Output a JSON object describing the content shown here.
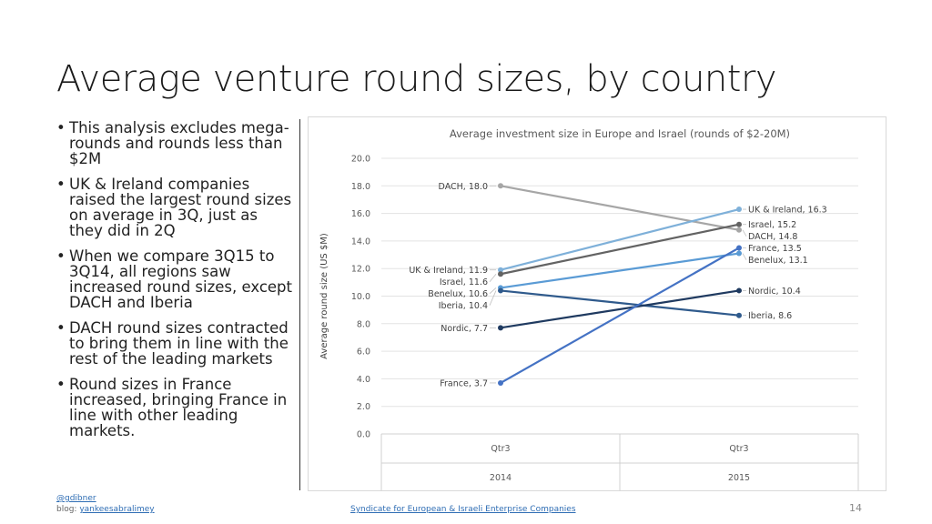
{
  "slide": {
    "title": "Average venture round sizes, by country",
    "bullets": [
      "This analysis excludes mega-rounds and rounds less than $2M",
      "UK & Ireland companies raised the largest round sizes on average in 3Q, just as they did in 2Q",
      "When we compare 3Q15 to 3Q14, all regions saw increased round sizes, except DACH and Iberia",
      "DACH round sizes contracted to bring them in line with the rest of the leading markets",
      "Round sizes in France increased, bringing France in line with other leading markets."
    ],
    "footer": {
      "handle": "@gdibner",
      "blog_prefix": "blog: ",
      "blog_link": "yankeesabralimey",
      "center_link": "Syndicate for European & Israeli Enterprise Companies",
      "page_number": "14"
    }
  },
  "chart_data": {
    "type": "line",
    "title": "Average investment size in Europe and Israel (rounds of $2-20M)",
    "ylabel": "Average round size (US $M)",
    "xlabel": "",
    "ylim": [
      0,
      20
    ],
    "yticks": [
      "0.0",
      "2.0",
      "4.0",
      "6.0",
      "8.0",
      "10.0",
      "12.0",
      "14.0",
      "16.0",
      "18.0",
      "20.0"
    ],
    "categories": [
      {
        "quarter": "Qtr3",
        "year": "2014"
      },
      {
        "quarter": "Qtr3",
        "year": "2015"
      }
    ],
    "series": [
      {
        "name": "DACH",
        "values": [
          18.0,
          14.8
        ],
        "color": "#a6a6a6",
        "labels": [
          "DACH, 18.0",
          "DACH, 14.8"
        ]
      },
      {
        "name": "UK & Ireland",
        "values": [
          11.9,
          16.3
        ],
        "color": "#7eb0d9",
        "labels": [
          "UK & Ireland, 11.9",
          "UK & Ireland, 16.3"
        ]
      },
      {
        "name": "Israel",
        "values": [
          11.6,
          15.2
        ],
        "color": "#636363",
        "labels": [
          "Israel, 11.6",
          "Israel, 15.2"
        ]
      },
      {
        "name": "Benelux",
        "values": [
          10.6,
          13.1
        ],
        "color": "#5a9bd5",
        "labels": [
          "Benelux, 10.6",
          "Benelux, 13.1"
        ]
      },
      {
        "name": "Iberia",
        "values": [
          10.4,
          8.6
        ],
        "color": "#2f5a8c",
        "labels": [
          "Iberia, 10.4",
          "Iberia, 8.6"
        ]
      },
      {
        "name": "Nordic",
        "values": [
          7.7,
          10.4
        ],
        "color": "#1f3a60",
        "labels": [
          "Nordic, 7.7",
          "Nordic, 10.4"
        ]
      },
      {
        "name": "France",
        "values": [
          3.7,
          13.5
        ],
        "color": "#4472c4",
        "labels": [
          "France, 3.7",
          "France, 13.5"
        ]
      }
    ],
    "grid": true,
    "legend": "none"
  }
}
